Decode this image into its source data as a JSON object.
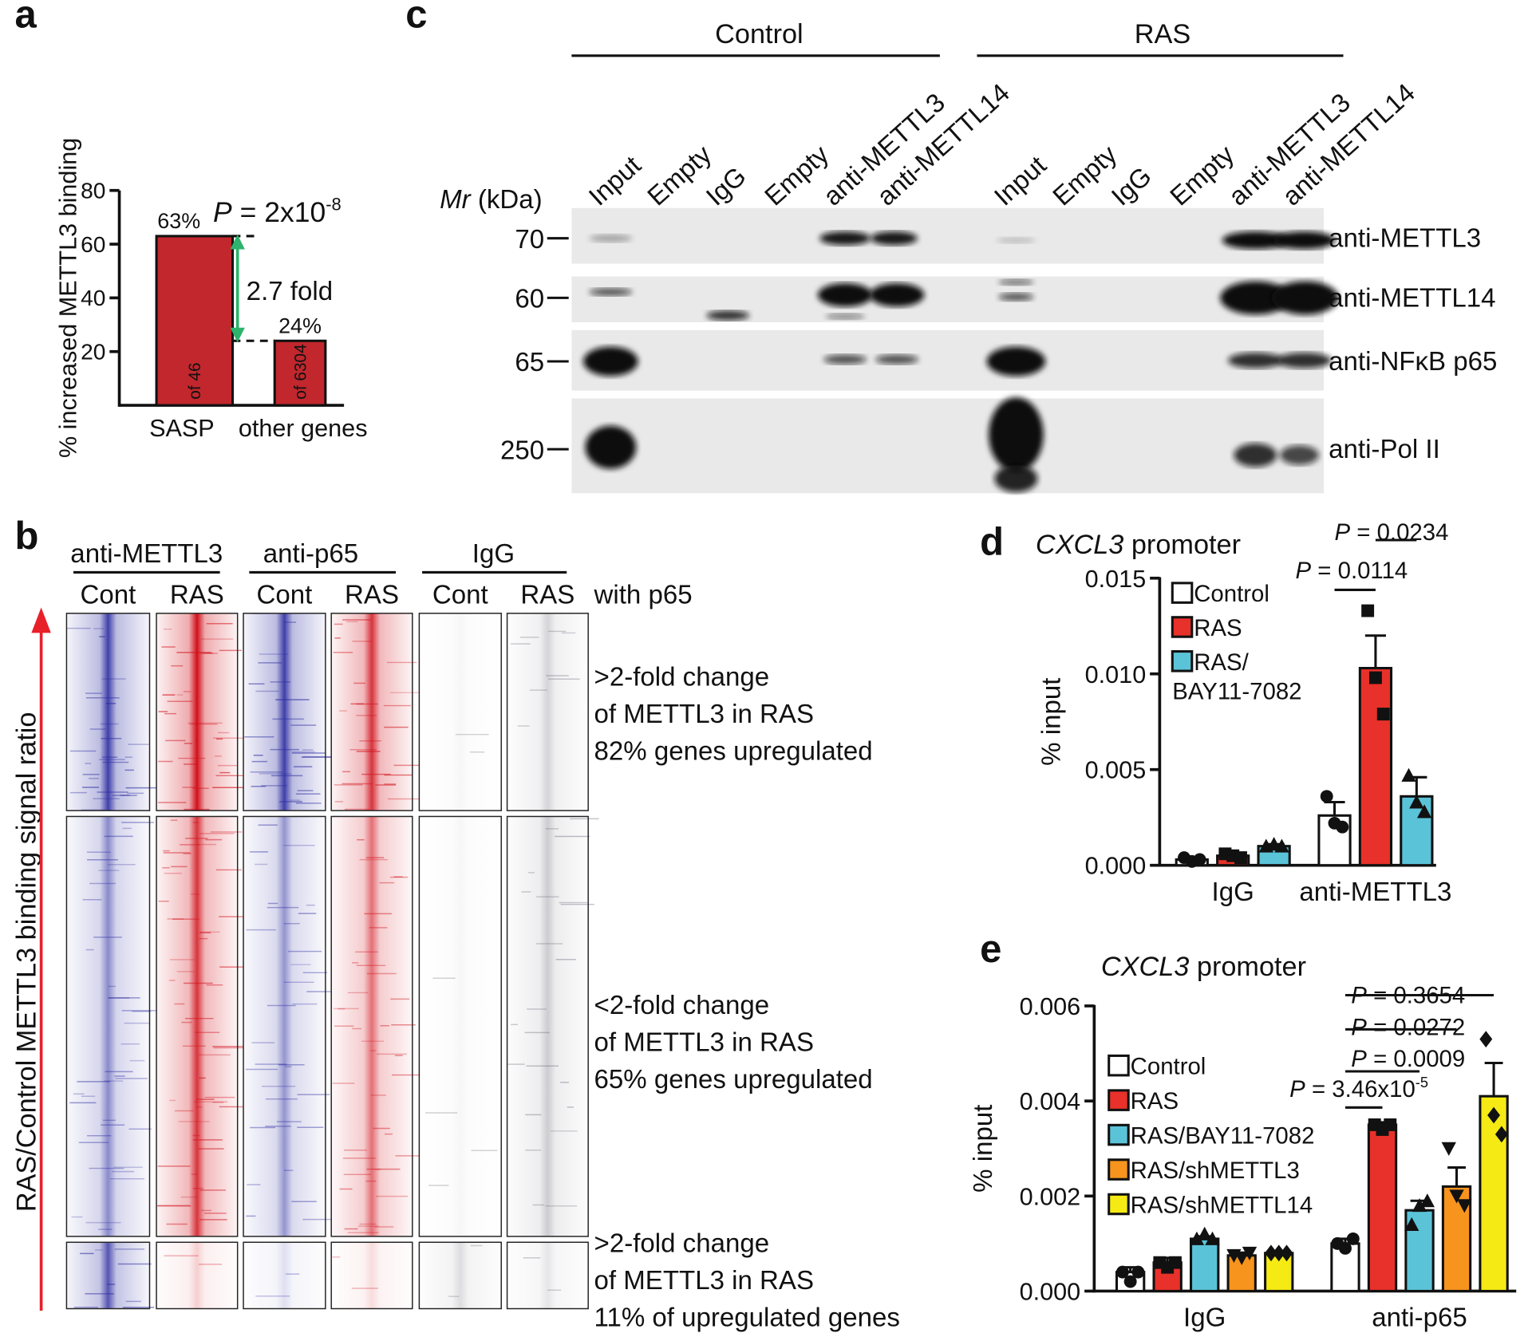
{
  "panel_labels": [
    "a",
    "b",
    "c",
    "d",
    "e"
  ],
  "chart_data": [
    {
      "type": "bar",
      "ylabel": "% increased METTL3 binding",
      "categories": [
        "SASP",
        "other genes"
      ],
      "values": [
        63,
        24
      ],
      "value_labels": [
        "63%",
        "24%"
      ],
      "bar_notes": [
        "of 46",
        "of 6304"
      ],
      "color": "#c1272d",
      "ylim": [
        0,
        80
      ],
      "yticks": [
        20,
        40,
        60,
        80
      ],
      "p_value": {
        "symbol": "P",
        "text": " = 2x10",
        "exponent": "-8"
      },
      "fold_label": "2.7 fold",
      "arrow_color": "#2db36b"
    },
    {
      "type": "grouped_bar",
      "title_gene": "CXCL3",
      "title": " promoter",
      "ylabel": "% input",
      "categories": [
        "IgG",
        "anti-METTL3"
      ],
      "ylim": [
        0,
        0.015
      ],
      "yticks": [
        {
          "value": 0,
          "label": "0.000"
        },
        {
          "value": 0.005,
          "label": "0.005"
        },
        {
          "value": 0.01,
          "label": "0.010"
        },
        {
          "value": 0.015,
          "label": "0.015"
        }
      ],
      "series": [
        {
          "name": "Control",
          "color": "#ffffff",
          "marker": "circle",
          "values": [
            0.0003,
            0.0026
          ],
          "errors": [
            0.0001,
            0.0007
          ],
          "points": [
            [
              0.0004,
              0.0002,
              0.0003
            ],
            [
              0.0036,
              0.0022,
              0.002
            ]
          ]
        },
        {
          "name": "RAS",
          "color": "#e8312a",
          "marker": "square",
          "values": [
            0.0005,
            0.0103
          ],
          "errors": [
            0.0001,
            0.0017
          ],
          "points": [
            [
              0.0006,
              0.0005,
              0.0004
            ],
            [
              0.0133,
              0.0098,
              0.0079
            ]
          ]
        },
        {
          "name": "RAS/BAY11-7082",
          "color": "#5bc3d8",
          "marker": "triangle",
          "values": [
            0.001,
            0.0036
          ],
          "errors": [
            0.0001,
            0.001
          ],
          "points": [
            [
              0.001,
              0.0011,
              0.001
            ],
            [
              0.0047,
              0.0033,
              0.0028
            ]
          ]
        }
      ],
      "comparisons": [
        {
          "category": "anti-METTL3",
          "series": [
            "Control",
            "RAS"
          ],
          "symbol": "P",
          "text": " = 0.0114"
        },
        {
          "category": "anti-METTL3",
          "series": [
            "RAS",
            "RAS/BAY11-7082"
          ],
          "symbol": "P",
          "text": " = 0.0234"
        }
      ]
    },
    {
      "type": "grouped_bar",
      "title_gene": "CXCL3",
      "title": " promoter",
      "ylabel": "% input",
      "categories": [
        "IgG",
        "anti-p65"
      ],
      "ylim": [
        0,
        0.006
      ],
      "yticks": [
        {
          "value": 0,
          "label": "0.000"
        },
        {
          "value": 0.002,
          "label": "0.002"
        },
        {
          "value": 0.004,
          "label": "0.004"
        },
        {
          "value": 0.006,
          "label": "0.006"
        }
      ],
      "series": [
        {
          "name": "Control",
          "color": "#ffffff",
          "marker": "circle",
          "values": [
            0.0004,
            0.001
          ],
          "errors": [
            0.0001,
            0.0001
          ],
          "points": [
            [
              0.0004,
              0.0002,
              0.0004
            ],
            [
              0.001,
              0.0009,
              0.0011
            ]
          ]
        },
        {
          "name": "RAS",
          "color": "#e8312a",
          "marker": "square",
          "values": [
            0.0006,
            0.0035
          ],
          "errors": [
            0.0001,
            5e-05
          ],
          "points": [
            [
              0.0006,
              0.0005,
              0.0006
            ],
            [
              0.0035,
              0.0034,
              0.0035
            ]
          ]
        },
        {
          "name": "RAS/BAY11-7082",
          "color": "#5bc3d8",
          "marker": "triangle",
          "values": [
            0.0011,
            0.0017
          ],
          "errors": [
            5e-05,
            0.0002
          ],
          "points": [
            [
              0.0011,
              0.0012,
              0.0011
            ],
            [
              0.0014,
              0.0018,
              0.0019
            ]
          ]
        },
        {
          "name": "RAS/shMETTL3",
          "color": "#f7941d",
          "marker": "triangle-down",
          "values": [
            0.00075,
            0.0022
          ],
          "errors": [
            3e-05,
            0.0004
          ],
          "points": [
            [
              0.00075,
              0.0007,
              0.0008
            ],
            [
              0.003,
              0.002,
              0.0018
            ]
          ]
        },
        {
          "name": "RAS/shMETTL14",
          "color": "#f5ea14",
          "marker": "diamond",
          "values": [
            0.0008,
            0.0041
          ],
          "errors": [
            2e-05,
            0.0007
          ],
          "points": [
            [
              0.0008,
              0.0008,
              0.0008
            ],
            [
              0.0053,
              0.0037,
              0.0033
            ]
          ]
        }
      ],
      "comparisons": [
        {
          "category": "anti-p65",
          "series": [
            "Control",
            "RAS"
          ],
          "symbol": "P",
          "text": " = 3.46x10",
          "exponent": "-5"
        },
        {
          "category": "anti-p65",
          "series": [
            "Control",
            "RAS/BAY11-7082"
          ],
          "symbol": "P",
          "text": " = 0.0009"
        },
        {
          "category": "anti-p65",
          "series": [
            "Control",
            "RAS/shMETTL3"
          ],
          "symbol": "P",
          "text": " = 0.0272"
        },
        {
          "category": "anti-p65",
          "series": [
            "Control",
            "RAS/shMETTL14"
          ],
          "symbol": "P",
          "text": " = 0.3654"
        }
      ]
    }
  ],
  "heatmap": {
    "groups": [
      "anti-METTL3",
      "anti-p65",
      "IgG"
    ],
    "columns": [
      "Cont",
      "RAS",
      "Cont",
      "RAS",
      "Cont",
      "RAS"
    ],
    "note": "with p65",
    "ylabel": "RAS/Control METTL3 binding signal ratio",
    "clusters": [
      [
        ">2-fold change",
        "of METTL3 in RAS",
        "82% genes upregulated"
      ],
      [
        "<2-fold change",
        "of METTL3 in RAS",
        "65% genes upregulated"
      ],
      [
        ">2-fold change",
        "of METTL3 in RAS",
        "11% of upregulated genes"
      ]
    ]
  },
  "blot": {
    "groups": [
      "Control",
      "RAS"
    ],
    "lanes": [
      [
        "Input",
        "Empty",
        "IgG",
        "Empty",
        "anti-METTL3",
        "anti-METTL14"
      ],
      [
        "Input",
        "Empty",
        "IgG",
        "Empty",
        "anti-METTL3",
        "anti-METTL14"
      ]
    ],
    "mr_symbol": "Mr",
    "mr_unit": " (kDa)",
    "markers": [
      70,
      60,
      65,
      250
    ],
    "antibodies": [
      "anti-METTL3",
      "anti-METTL14",
      "anti-NFκB p65",
      "anti-Pol II"
    ]
  }
}
